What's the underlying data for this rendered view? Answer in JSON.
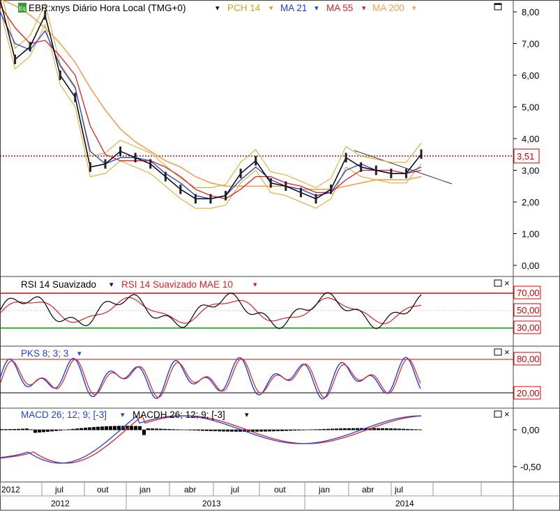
{
  "header": {
    "symbol_badge": "Eq",
    "title": "EBR:xnys Diário Hora Local (TMG+0)",
    "legend": [
      {
        "label": "PCH 14",
        "color": "#d9a320"
      },
      {
        "label": "MA 21",
        "color": "#1f3fe0"
      },
      {
        "label": "MA 55",
        "color": "#e02020"
      },
      {
        "label": "MA 200",
        "color": "#f0a050"
      }
    ]
  },
  "price_labels": [
    "8,00",
    "7,00",
    "6,00",
    "5,00",
    "4,00",
    "3,00",
    "2,00",
    "1,00",
    "0,00"
  ],
  "current_price": "3,51",
  "rsi": {
    "title": "RSI 14 Suavizado",
    "title2": "RSI 14 Suavizado MAE 10",
    "levels": [
      "70,00",
      "50,00",
      "30,00"
    ]
  },
  "pks": {
    "title": "PKS 8; 3; 3",
    "levels": [
      "80,00",
      "20,00"
    ]
  },
  "macd": {
    "title": "MACD 26; 12; 9; [-3]",
    "title2": "MACDH 26; 12; 9; [-3]",
    "levels": [
      "0,00",
      "-0,50"
    ]
  },
  "x_axis": {
    "months": [
      "2012",
      "jul",
      "out",
      "jan",
      "abr",
      "jul",
      "out",
      "jan",
      "abr",
      "jul"
    ],
    "years": [
      "2012",
      "2013",
      "2014"
    ]
  },
  "chart_data": {
    "type": "line",
    "title": "EBR:xnys Diário Hora Local (TMG+0)",
    "x_unit": "month",
    "x": [
      "2012-04",
      "2012-05",
      "2012-06",
      "2012-07",
      "2012-08",
      "2012-09",
      "2012-10",
      "2012-11",
      "2012-12",
      "2013-01",
      "2013-02",
      "2013-03",
      "2013-04",
      "2013-05",
      "2013-06",
      "2013-07",
      "2013-08",
      "2013-09",
      "2013-10",
      "2013-11",
      "2013-12",
      "2014-01",
      "2014-02",
      "2014-03",
      "2014-04",
      "2014-05",
      "2014-06",
      "2014-07",
      "2014-08"
    ],
    "series": [
      {
        "name": "EBR",
        "values": [
          8.4,
          6.5,
          6.9,
          7.9,
          6.0,
          5.3,
          3.1,
          3.2,
          3.6,
          3.4,
          3.2,
          2.8,
          2.4,
          2.1,
          2.1,
          2.2,
          2.9,
          3.3,
          2.6,
          2.5,
          2.3,
          2.1,
          2.4,
          3.4,
          3.1,
          3.0,
          2.9,
          2.9,
          3.51
        ]
      },
      {
        "name": "MA 21",
        "values": [
          8.0,
          7.0,
          6.8,
          7.4,
          6.3,
          5.6,
          3.6,
          3.2,
          3.4,
          3.4,
          3.3,
          2.9,
          2.6,
          2.2,
          2.1,
          2.2,
          2.7,
          3.1,
          2.7,
          2.5,
          2.4,
          2.2,
          2.3,
          3.0,
          3.2,
          3.0,
          2.9,
          2.9,
          3.1
        ]
      },
      {
        "name": "MA 55",
        "values": [
          8.2,
          7.5,
          7.0,
          7.1,
          6.6,
          6.0,
          4.4,
          3.5,
          3.3,
          3.3,
          3.3,
          3.1,
          2.8,
          2.4,
          2.2,
          2.1,
          2.4,
          2.8,
          2.8,
          2.6,
          2.5,
          2.3,
          2.3,
          2.7,
          3.0,
          3.0,
          3.0,
          2.9,
          3.0
        ]
      },
      {
        "name": "MA 200",
        "values": [
          8.4,
          8.2,
          7.9,
          7.5,
          7.0,
          6.4,
          5.6,
          4.9,
          4.3,
          3.9,
          3.6,
          3.3,
          3.1,
          2.8,
          2.6,
          2.5,
          2.5,
          2.5,
          2.5,
          2.5,
          2.4,
          2.4,
          2.4,
          2.5,
          2.6,
          2.7,
          2.7,
          2.7,
          2.8
        ]
      }
    ],
    "ylim": [
      -0.3,
      8.4
    ],
    "annotations": [
      "3,51"
    ]
  }
}
